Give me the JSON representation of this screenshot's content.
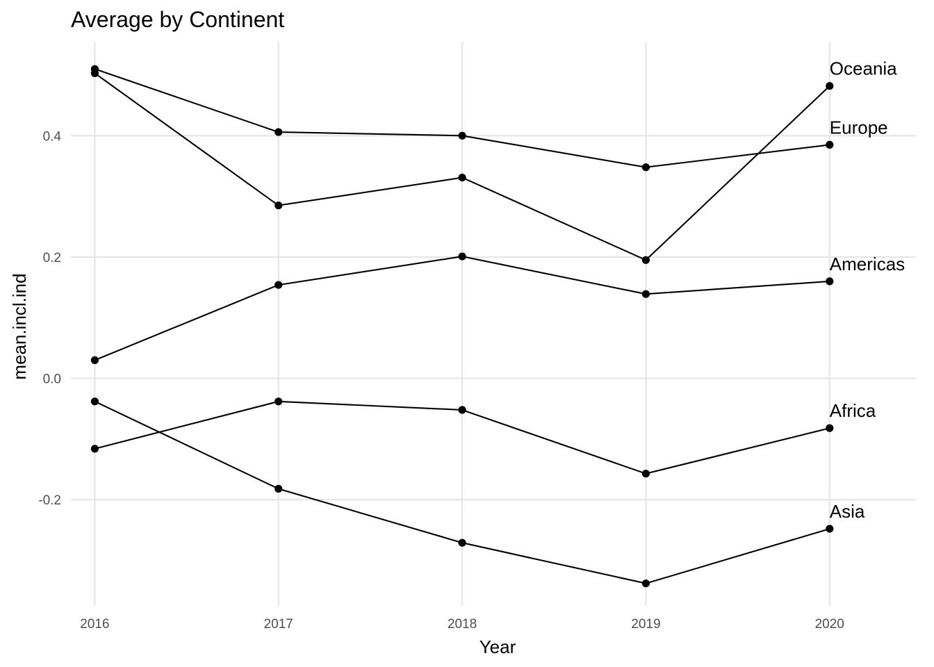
{
  "chart_data": {
    "type": "line",
    "title": "Average by Continent",
    "xlabel": "Year",
    "ylabel": "mean.incl.ind",
    "x": [
      2016,
      2017,
      2018,
      2019,
      2020
    ],
    "x_tick_labels": [
      "2016",
      "2017",
      "2018",
      "2019",
      "2020"
    ],
    "y_ticks": [
      -0.2,
      0.0,
      0.2,
      0.4
    ],
    "y_tick_labels": [
      "-0.2",
      "0.0",
      "0.2",
      "0.4"
    ],
    "xlim": [
      2015.87,
      2020.47
    ],
    "ylim": [
      -0.375,
      0.555
    ],
    "grid": true,
    "legend": "none (direct labels at line ends)",
    "line_color": "#000000",
    "grid_color": "#e5e5e5",
    "series": [
      {
        "name": "Oceania",
        "values": [
          0.503,
          0.285,
          0.331,
          0.195,
          0.482
        ]
      },
      {
        "name": "Europe",
        "values": [
          0.51,
          0.406,
          0.4,
          0.348,
          0.385
        ]
      },
      {
        "name": "Americas",
        "values": [
          0.03,
          0.154,
          0.201,
          0.139,
          0.16
        ]
      },
      {
        "name": "Africa",
        "values": [
          -0.116,
          -0.038,
          -0.052,
          -0.157,
          -0.082
        ]
      },
      {
        "name": "Asia",
        "values": [
          -0.038,
          -0.182,
          -0.271,
          -0.338,
          -0.248
        ]
      }
    ]
  }
}
